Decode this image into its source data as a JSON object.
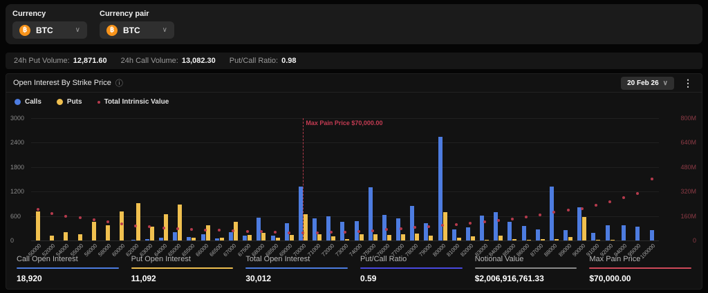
{
  "icons": {
    "bitcoin": "฿",
    "info": "ⓘ",
    "kebab": "⋮",
    "chevron_down": "∨"
  },
  "controls": {
    "currency_label": "Currency",
    "currency_value": "BTC",
    "pair_label": "Currency pair",
    "pair_value": "BTC"
  },
  "volume_bar": {
    "put_volume_label": "24h Put Volume:",
    "put_volume": "12,871.60",
    "call_volume_label": "24h Call Volume:",
    "call_volume": "13,082.30",
    "ratio_label": "Put/Call Ratio:",
    "ratio": "0.98"
  },
  "panel": {
    "title": "Open Interest By Strike Price",
    "expiry_selected": "20 Feb 26"
  },
  "legend": [
    {
      "label": "Calls",
      "color": "#4d7ce0"
    },
    {
      "label": "Puts",
      "color": "#f0c04f"
    },
    {
      "label": "Total Intrinsic Value",
      "color": "#b53a4c"
    }
  ],
  "chart_data": {
    "type": "bar",
    "title": "Open Interest By Strike Price",
    "grid": true,
    "legend_position": "top-left",
    "categories": [
      "50000",
      "52000",
      "54000",
      "55000",
      "56000",
      "58000",
      "60000",
      "62000",
      "63000",
      "64000",
      "65000",
      "65500",
      "66000",
      "66500",
      "67000",
      "67500",
      "68000",
      "68500",
      "69000",
      "70000",
      "71000",
      "72000",
      "73000",
      "74000",
      "75000",
      "76000",
      "77000",
      "78000",
      "79000",
      "80000",
      "81000",
      "82000",
      "83000",
      "84000",
      "85000",
      "86000",
      "87000",
      "88000",
      "89000",
      "90000",
      "91000",
      "92000",
      "94000",
      "95000",
      "100000"
    ],
    "series": [
      {
        "name": "Calls",
        "type": "bar",
        "axis": "left",
        "color": "#4d7ce0",
        "values": [
          0,
          0,
          0,
          0,
          0,
          0,
          0,
          10,
          30,
          70,
          200,
          90,
          150,
          50,
          200,
          120,
          560,
          120,
          430,
          1320,
          550,
          600,
          450,
          470,
          1310,
          630,
          540,
          840,
          430,
          2550,
          270,
          330,
          610,
          690,
          450,
          350,
          270,
          1320,
          260,
          820,
          180,
          370,
          370,
          340,
          260
        ]
      },
      {
        "name": "Puts",
        "type": "bar",
        "axis": "left",
        "color": "#f0c04f",
        "values": [
          710,
          115,
          210,
          160,
          450,
          380,
          720,
          920,
          340,
          650,
          880,
          60,
          370,
          60,
          460,
          140,
          190,
          70,
          130,
          650,
          150,
          100,
          40,
          150,
          150,
          130,
          150,
          170,
          120,
          690,
          60,
          110,
          20,
          120,
          30,
          10,
          30,
          40,
          80,
          580,
          10,
          10,
          0,
          0,
          0
        ]
      },
      {
        "name": "Total Intrinsic Value",
        "type": "scatter",
        "axis": "right",
        "color": "#b53a4c",
        "unit": "M",
        "values": [
          195,
          168,
          150,
          138,
          128,
          115,
          98,
          86,
          80,
          74,
          68,
          64,
          60,
          57,
          54,
          51,
          48,
          45,
          43,
          41,
          42,
          44,
          47,
          51,
          56,
          62,
          68,
          75,
          82,
          90,
          97,
          106,
          114,
          123,
          133,
          146,
          160,
          175,
          188,
          200,
          220,
          242,
          273,
          300,
          395
        ]
      }
    ],
    "left_axis": {
      "ticks": [
        0,
        600,
        1200,
        1800,
        2400,
        3000
      ],
      "max": 3000
    },
    "right_axis": {
      "ticks": [
        "0",
        "160M",
        "320M",
        "480M",
        "640M",
        "800M"
      ],
      "max_millions": 800
    },
    "annotation": {
      "label": "Max Pain Price $70,000.00",
      "strike": "70000",
      "color": "#c43b52"
    }
  },
  "footer_stats": [
    {
      "label": "Call Open Interest",
      "value": "18,920",
      "color": "#4d7ce0"
    },
    {
      "label": "Put Open Interest",
      "value": "11,092",
      "color": "#f0c04f"
    },
    {
      "label": "Total Open Interest",
      "value": "30,012",
      "color": "#4d7ce0"
    },
    {
      "label": "Put/Call Ratio",
      "value": "0.59",
      "color": "#4a4ae0"
    },
    {
      "label": "Notional Value",
      "value": "$2,006,916,761.33",
      "color": "#8a8a8a"
    },
    {
      "label": "Max Pain Price",
      "value": "$70,000.00",
      "color": "#d04a5a"
    }
  ]
}
